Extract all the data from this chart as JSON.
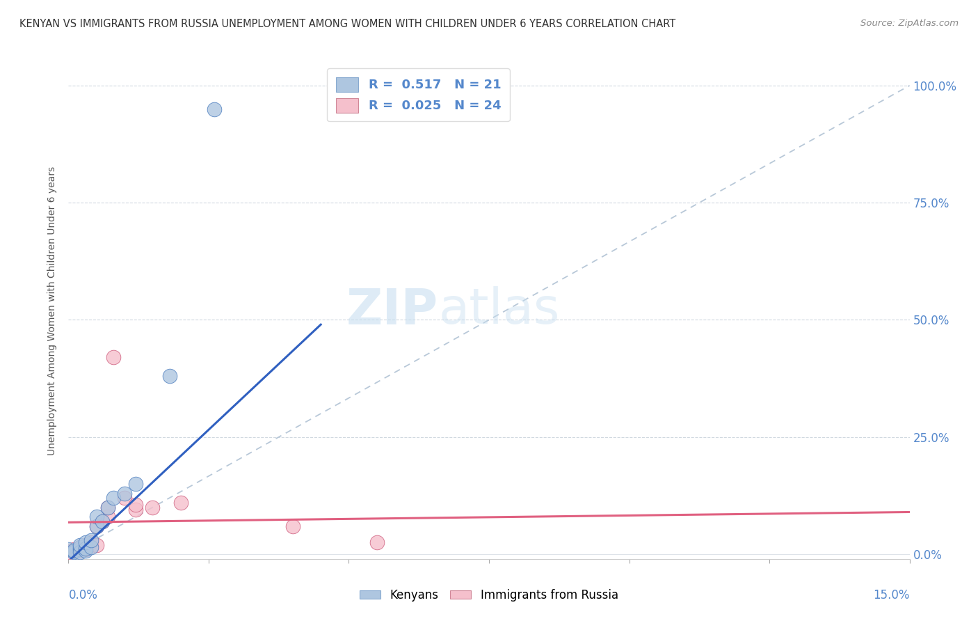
{
  "title": "KENYAN VS IMMIGRANTS FROM RUSSIA UNEMPLOYMENT AMONG WOMEN WITH CHILDREN UNDER 6 YEARS CORRELATION CHART",
  "source": "Source: ZipAtlas.com",
  "ylabel": "Unemployment Among Women with Children Under 6 years",
  "legend_bottom": [
    "Kenyans",
    "Immigrants from Russia"
  ],
  "kenyan_R": "0.517",
  "kenyan_N": "21",
  "russia_R": "0.025",
  "russia_N": "24",
  "blue_scatter_color": "#aec6e0",
  "blue_scatter_edge": "#5080c0",
  "pink_scatter_color": "#f5c0cc",
  "pink_scatter_edge": "#d06080",
  "blue_line_color": "#3060c0",
  "pink_line_color": "#e06080",
  "diag_line_color": "#b8c8d8",
  "grid_color": "#d0d8e0",
  "title_color": "#333333",
  "source_color": "#888888",
  "axis_label_color": "#5588cc",
  "right_tick_color": "#5588cc",
  "watermark_color": "#daeaf8",
  "kenyan_points": [
    [
      0.0,
      0.01
    ],
    [
      0.001,
      0.005
    ],
    [
      0.001,
      0.008
    ],
    [
      0.002,
      0.01
    ],
    [
      0.002,
      0.015
    ],
    [
      0.002,
      0.005
    ],
    [
      0.002,
      0.02
    ],
    [
      0.003,
      0.008
    ],
    [
      0.003,
      0.012
    ],
    [
      0.003,
      0.025
    ],
    [
      0.004,
      0.015
    ],
    [
      0.004,
      0.03
    ],
    [
      0.005,
      0.06
    ],
    [
      0.005,
      0.08
    ],
    [
      0.006,
      0.07
    ],
    [
      0.007,
      0.1
    ],
    [
      0.008,
      0.12
    ],
    [
      0.01,
      0.13
    ],
    [
      0.012,
      0.15
    ],
    [
      0.018,
      0.38
    ],
    [
      0.026,
      0.95
    ]
  ],
  "russia_points": [
    [
      0.0,
      0.005
    ],
    [
      0.001,
      0.008
    ],
    [
      0.001,
      0.01
    ],
    [
      0.002,
      0.008
    ],
    [
      0.002,
      0.012
    ],
    [
      0.002,
      0.015
    ],
    [
      0.003,
      0.01
    ],
    [
      0.003,
      0.015
    ],
    [
      0.003,
      0.02
    ],
    [
      0.004,
      0.018
    ],
    [
      0.004,
      0.025
    ],
    [
      0.005,
      0.02
    ],
    [
      0.005,
      0.06
    ],
    [
      0.006,
      0.07
    ],
    [
      0.007,
      0.08
    ],
    [
      0.007,
      0.1
    ],
    [
      0.008,
      0.42
    ],
    [
      0.01,
      0.12
    ],
    [
      0.012,
      0.095
    ],
    [
      0.012,
      0.105
    ],
    [
      0.015,
      0.1
    ],
    [
      0.02,
      0.11
    ],
    [
      0.04,
      0.06
    ],
    [
      0.055,
      0.025
    ]
  ],
  "blue_line_x": [
    0.0,
    0.045
  ],
  "blue_line_y": [
    -0.015,
    0.49
  ],
  "pink_line_x": [
    0.0,
    0.15
  ],
  "pink_line_y": [
    0.068,
    0.09
  ],
  "diag_line_x": [
    0.0,
    0.15
  ],
  "diag_line_y": [
    0.0,
    1.0
  ],
  "xmin": 0.0,
  "xmax": 0.15,
  "ymin": -0.01,
  "ymax": 1.05
}
